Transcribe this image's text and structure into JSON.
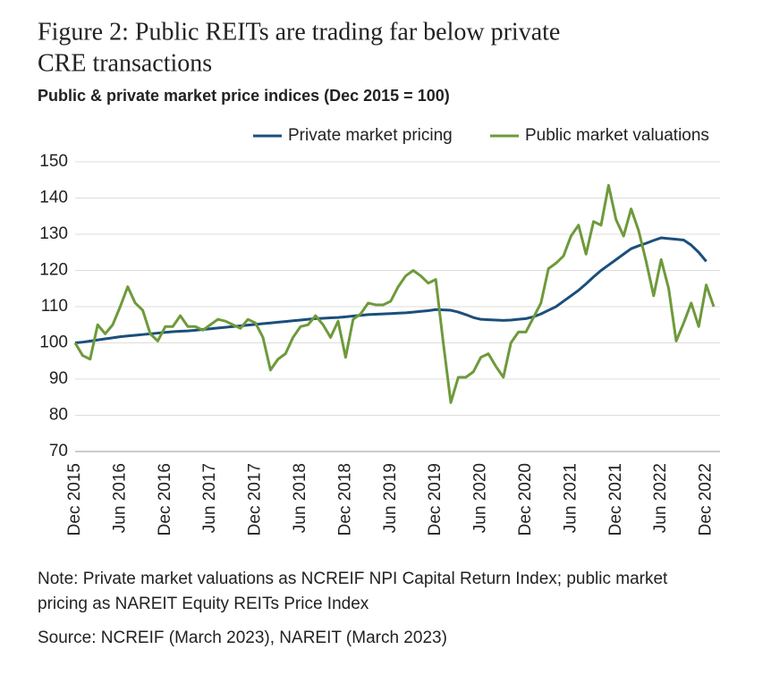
{
  "chart_data": {
    "type": "line",
    "title": [
      "Figure 2: Public REITs are trading far below private",
      "CRE transactions"
    ],
    "subtitle": "Public & private market price indices (Dec 2015 = 100)",
    "categories": [
      "Dec 2015",
      null,
      null,
      null,
      null,
      null,
      "Jun 2016",
      null,
      null,
      null,
      null,
      null,
      "Dec 2016",
      null,
      null,
      null,
      null,
      null,
      "Jun 2017",
      null,
      null,
      null,
      null,
      null,
      "Dec 2017",
      null,
      null,
      null,
      null,
      null,
      "Jun 2018",
      null,
      null,
      null,
      null,
      null,
      "Dec 2018",
      null,
      null,
      null,
      null,
      null,
      "Jun 2019",
      null,
      null,
      null,
      null,
      null,
      "Dec 2019",
      null,
      null,
      null,
      null,
      null,
      "Jun 2020",
      null,
      null,
      null,
      null,
      null,
      "Dec 2020",
      null,
      null,
      null,
      null,
      null,
      "Jun 2021",
      null,
      null,
      null,
      null,
      null,
      "Dec 2021",
      null,
      null,
      null,
      null,
      null,
      "Jun 2022",
      null,
      null,
      null,
      null,
      null,
      "Dec 2022",
      null
    ],
    "series": [
      {
        "name": "Private market pricing",
        "color": "#1b4f7b",
        "values": [
          100,
          100.2,
          100.5,
          100.8,
          101.1,
          101.4,
          101.7,
          101.9,
          102.1,
          102.3,
          102.5,
          102.7,
          102.9,
          103.1,
          103.2,
          103.3,
          103.5,
          103.7,
          103.9,
          104.1,
          104.3,
          104.5,
          104.7,
          104.9,
          105.1,
          105.3,
          105.5,
          105.7,
          105.9,
          106.1,
          106.3,
          106.5,
          106.7,
          106.8,
          106.9,
          107.0,
          107.2,
          107.4,
          107.6,
          107.8,
          107.9,
          108.0,
          108.1,
          108.2,
          108.3,
          108.5,
          108.7,
          108.9,
          109.2,
          109.1,
          109.0,
          108.5,
          107.8,
          107.0,
          106.5,
          106.4,
          106.3,
          106.2,
          106.3,
          106.5,
          106.7,
          107.2,
          108.0,
          109.0,
          110.0,
          111.5,
          113.0,
          114.5,
          116.3,
          118.2,
          120.0,
          121.5,
          123.0,
          124.5,
          126.0,
          126.8,
          127.5,
          128.3,
          129.0,
          128.8,
          128.6,
          128.4,
          127.0,
          125.0,
          122.5,
          null
        ]
      },
      {
        "name": "Public market valuations",
        "color": "#6e9a3b",
        "values": [
          100,
          96.5,
          95.5,
          105,
          102.5,
          105,
          110,
          115.5,
          111,
          109,
          102.5,
          100.5,
          104.5,
          104.5,
          107.5,
          104.5,
          104.5,
          103.5,
          105,
          106.5,
          106,
          105,
          104,
          106.5,
          105.5,
          101.5,
          92.5,
          95.5,
          97,
          101.5,
          104.5,
          105,
          107.5,
          105,
          101.5,
          106,
          96,
          106.5,
          108,
          111,
          110.5,
          110.5,
          111.5,
          115.5,
          118.5,
          120,
          118.5,
          116.5,
          117.5,
          100,
          83.5,
          90.5,
          90.5,
          92,
          96,
          97,
          93.5,
          90.5,
          100,
          103,
          103,
          107,
          111,
          120.5,
          122,
          124,
          129.5,
          132.5,
          124.5,
          133.5,
          132.5,
          143.5,
          134,
          129.5,
          137,
          131,
          122.5,
          113,
          123,
          115,
          100.5,
          105.5,
          111,
          104.5,
          116,
          110
        ]
      }
    ],
    "ylim": [
      70,
      150
    ],
    "yticks": [
      70,
      80,
      90,
      100,
      110,
      120,
      130,
      140,
      150
    ],
    "grid": true,
    "legend": "top-right",
    "notes": [
      "Note: Private market valuations as NCREIF NPI Capital Return Index; public market",
      "pricing as NAREIT Equity REITs Price Index"
    ],
    "source": "Source: NCREIF (March 2023), NAREIT (March 2023)"
  }
}
